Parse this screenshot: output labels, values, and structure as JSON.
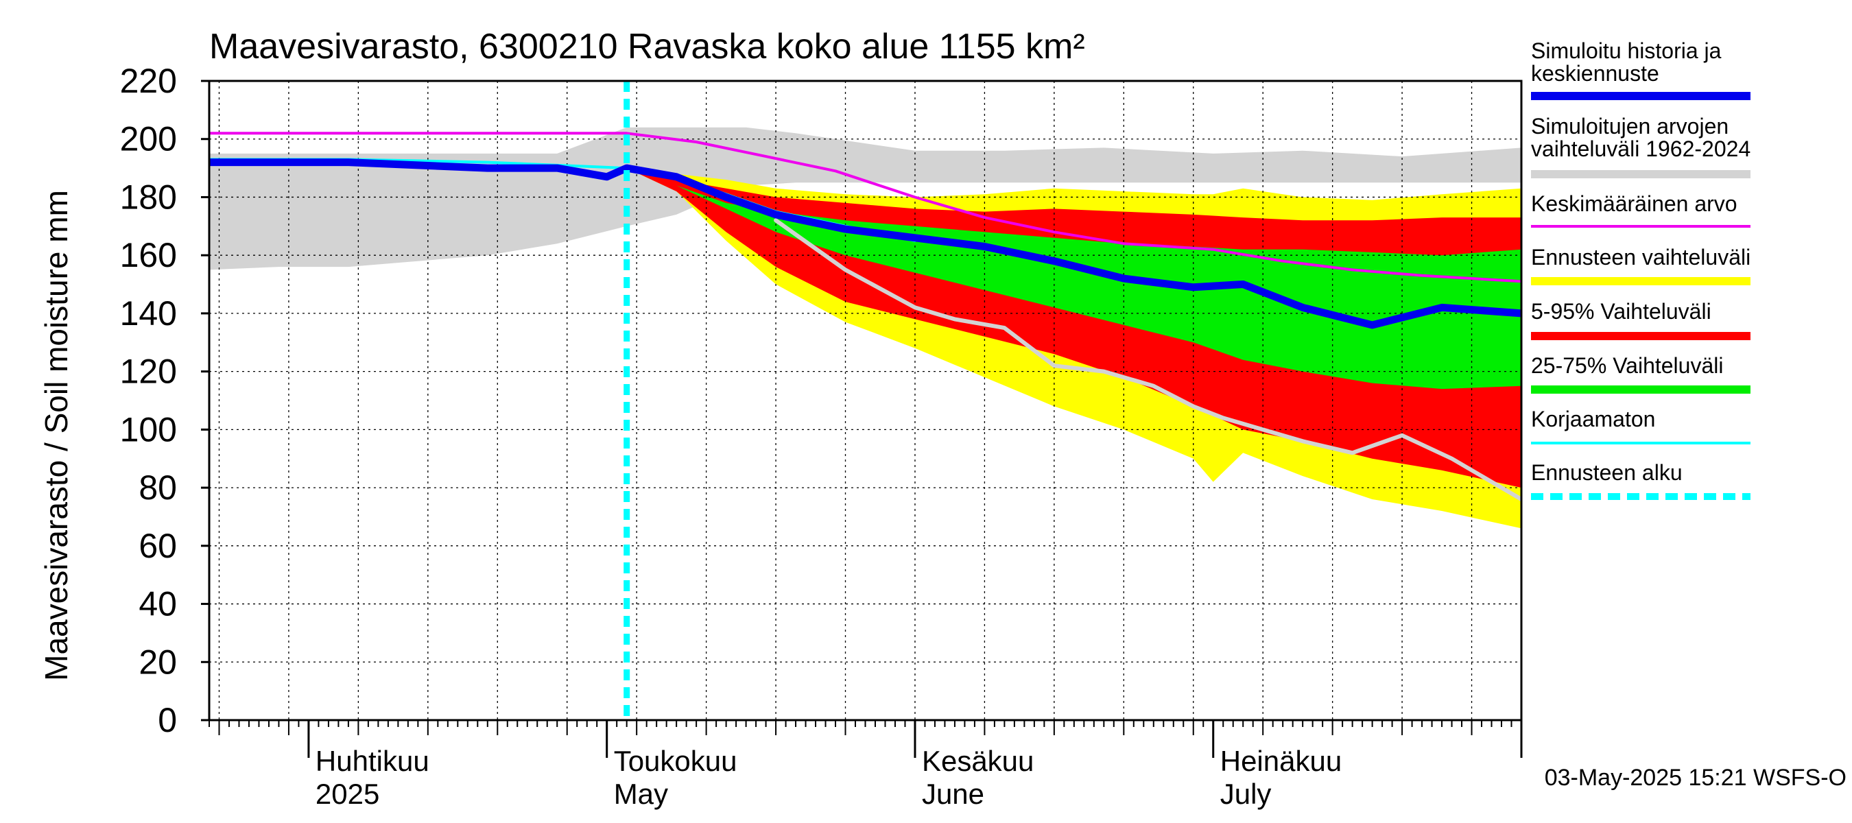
{
  "chart_data": {
    "type": "area",
    "title": "Maavesivarasto, 6300210 Ravaska koko alue 1155 km²",
    "ylabel": "Maavesivarasto / Soil moisture   mm",
    "ylim": [
      0,
      220
    ],
    "yticks": [
      0,
      20,
      40,
      60,
      80,
      100,
      120,
      140,
      160,
      180,
      200,
      220
    ],
    "x_start": "2025-03-22",
    "x_end": "2025-08-01",
    "forecast_start": "2025-05-03",
    "grid": true,
    "legend_position": "right",
    "month_labels": [
      {
        "date": "2025-04-01",
        "fi": "Huhtikuu",
        "en": "2025"
      },
      {
        "date": "2025-05-01",
        "fi": "Toukokuu",
        "en": "May"
      },
      {
        "date": "2025-06-01",
        "fi": "Kesäkuu",
        "en": "June"
      },
      {
        "date": "2025-07-01",
        "fi": "Heinäkuu",
        "en": "July"
      }
    ],
    "legend": [
      {
        "label": "Simuloitu historia ja\nkeskiennuste",
        "color": "#0000ee",
        "style": "thick"
      },
      {
        "label": "Simuloitujen arvojen\nvaihteluväli 1962-2024",
        "color": "#d3d3d3",
        "style": "thick"
      },
      {
        "label": "Keskimääräinen arvo",
        "color": "#ee00ee",
        "style": "line"
      },
      {
        "label": "Ennusteen vaihteluväli",
        "color": "#ffff00",
        "style": "thick"
      },
      {
        "label": "5-95% Vaihteluväli",
        "color": "#ff0000",
        "style": "thick"
      },
      {
        "label": "25-75% Vaihteluväli",
        "color": "#00ee00",
        "style": "thick"
      },
      {
        "label": "Korjaamaton",
        "color": "#00ffff",
        "style": "line"
      },
      {
        "label": "Ennusteen alku",
        "color": "#00ffff",
        "style": "dashed"
      }
    ],
    "bands": {
      "history_range": {
        "x": [
          "2025-03-22",
          "2025-03-29",
          "2025-04-05",
          "2025-04-12",
          "2025-04-19",
          "2025-04-26",
          "2025-05-03",
          "2025-05-08",
          "2025-05-12",
          "2025-05-15",
          "2025-05-20",
          "2025-06-01",
          "2025-06-10",
          "2025-06-20",
          "2025-07-01",
          "2025-07-10",
          "2025-07-20",
          "2025-08-01"
        ],
        "upper": [
          195,
          195,
          195,
          195,
          195,
          195,
          204,
          204,
          204,
          204,
          202,
          196,
          196,
          197,
          195,
          196,
          194,
          197
        ],
        "lower": [
          155,
          156,
          156,
          158,
          160,
          164,
          170,
          174,
          180,
          184,
          185,
          185,
          185,
          185,
          185,
          185,
          185,
          185
        ]
      },
      "forecast_range": {
        "x": [
          "2025-05-03",
          "2025-05-08",
          "2025-05-13",
          "2025-05-18",
          "2025-05-25",
          "2025-06-01",
          "2025-06-08",
          "2025-06-15",
          "2025-06-22",
          "2025-06-29",
          "2025-07-01",
          "2025-07-04",
          "2025-07-10",
          "2025-07-17",
          "2025-07-24",
          "2025-08-01"
        ],
        "upper": [
          190,
          188,
          186,
          183,
          181,
          180,
          181,
          183,
          182,
          181,
          181,
          183,
          180,
          179,
          181,
          183
        ],
        "lower": [
          190,
          182,
          165,
          150,
          137,
          128,
          118,
          108,
          100,
          90,
          82,
          92,
          84,
          76,
          72,
          66
        ]
      },
      "p5_95": {
        "x": [
          "2025-05-03",
          "2025-05-08",
          "2025-05-13",
          "2025-05-18",
          "2025-05-25",
          "2025-06-01",
          "2025-06-08",
          "2025-06-15",
          "2025-06-22",
          "2025-06-29",
          "2025-07-04",
          "2025-07-10",
          "2025-07-17",
          "2025-07-24",
          "2025-08-01"
        ],
        "upper": [
          190,
          186,
          183,
          180,
          178,
          176,
          175,
          176,
          175,
          174,
          173,
          172,
          172,
          173,
          173
        ],
        "lower": [
          190,
          182,
          168,
          156,
          144,
          138,
          132,
          126,
          118,
          108,
          100,
          96,
          90,
          86,
          80
        ]
      },
      "p25_75": {
        "x": [
          "2025-05-03",
          "2025-05-08",
          "2025-05-13",
          "2025-05-18",
          "2025-05-25",
          "2025-06-01",
          "2025-06-08",
          "2025-06-15",
          "2025-06-22",
          "2025-06-29",
          "2025-07-04",
          "2025-07-10",
          "2025-07-17",
          "2025-07-24",
          "2025-08-01"
        ],
        "upper": [
          190,
          184,
          178,
          175,
          172,
          170,
          168,
          166,
          164,
          163,
          162,
          162,
          161,
          160,
          162
        ],
        "lower": [
          190,
          184,
          176,
          168,
          160,
          154,
          148,
          142,
          136,
          130,
          124,
          120,
          116,
          114,
          115
        ]
      }
    },
    "series": [
      {
        "name": "Simuloitu historia ja keskiennuste",
        "x": [
          "2025-03-22",
          "2025-04-05",
          "2025-04-12",
          "2025-04-19",
          "2025-04-26",
          "2025-05-01",
          "2025-05-03",
          "2025-05-08",
          "2025-05-13",
          "2025-05-18",
          "2025-05-25",
          "2025-06-01",
          "2025-06-08",
          "2025-06-15",
          "2025-06-22",
          "2025-06-29",
          "2025-07-04",
          "2025-07-10",
          "2025-07-17",
          "2025-07-24",
          "2025-08-01"
        ],
        "y": [
          192,
          192,
          191,
          190,
          190,
          187,
          190,
          187,
          180,
          174,
          169,
          166,
          163,
          158,
          152,
          149,
          150,
          142,
          136,
          142,
          140
        ]
      },
      {
        "name": "Keskimääräinen arvo",
        "x": [
          "2025-03-22",
          "2025-04-05",
          "2025-04-19",
          "2025-05-03",
          "2025-05-10",
          "2025-05-17",
          "2025-05-24",
          "2025-06-01",
          "2025-06-08",
          "2025-06-15",
          "2025-06-22",
          "2025-07-01",
          "2025-07-08",
          "2025-07-15",
          "2025-07-22",
          "2025-08-01"
        ],
        "y": [
          202,
          202,
          202,
          202,
          199,
          194,
          189,
          180,
          173,
          168,
          164,
          162,
          158,
          155,
          153,
          151
        ]
      },
      {
        "name": "Korjaamaton",
        "x": [
          "2025-03-22",
          "2025-04-05",
          "2025-04-19",
          "2025-05-03",
          "2025-05-08",
          "2025-05-18",
          "2025-06-01"
        ],
        "y": [
          193,
          193,
          192,
          190,
          187,
          175,
          165
        ]
      },
      {
        "name": "",
        "x": [
          "2025-05-18",
          "2025-05-25",
          "2025-06-01",
          "2025-06-05",
          "2025-06-10",
          "2025-06-15",
          "2025-06-20",
          "2025-06-25",
          "2025-06-29",
          "2025-07-02",
          "2025-07-06",
          "2025-07-10",
          "2025-07-15",
          "2025-07-20",
          "2025-07-25",
          "2025-08-01"
        ],
        "y": [
          172,
          155,
          142,
          138,
          135,
          122,
          120,
          115,
          108,
          104,
          100,
          96,
          92,
          98,
          90,
          76
        ]
      }
    ]
  },
  "footer": {
    "timestamp": "03-May-2025 15:21 WSFS-O"
  }
}
